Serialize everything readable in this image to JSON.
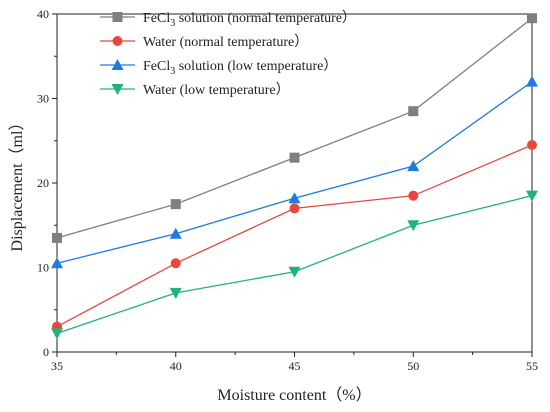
{
  "chart_data": {
    "type": "line",
    "x": [
      35,
      40,
      45,
      50,
      55
    ],
    "xlabel": "Moisture content（%）",
    "ylabel": "Displacement（ml）",
    "xlim": [
      35,
      55
    ],
    "ylim": [
      0,
      40
    ],
    "xticks": [
      35,
      40,
      45,
      50,
      55
    ],
    "yticks": [
      0,
      10,
      20,
      30,
      40
    ],
    "legend_position": "top-left",
    "grid": false,
    "series": [
      {
        "name": "FeCl3 solution (normal temperature）",
        "name_base": "FeCl",
        "name_sub": "3",
        "name_rest": " solution (normal temperature）",
        "marker": "square",
        "color": "#7f7f7f",
        "values": [
          13.5,
          17.5,
          23.0,
          28.5,
          39.5
        ]
      },
      {
        "name": "Water (normal temperature）",
        "marker": "circle",
        "color": "#e8473f",
        "values": [
          3.0,
          10.5,
          17.0,
          18.5,
          24.5
        ]
      },
      {
        "name": "FeCl3 solution (low temperature）",
        "name_base": "FeCl",
        "name_sub": "3",
        "name_rest": " solution (low temperature）",
        "marker": "triangle-up",
        "color": "#1f7be0",
        "values": [
          10.5,
          14.0,
          18.2,
          22.0,
          32.0
        ]
      },
      {
        "name": "Water (low temperature）",
        "marker": "triangle-down",
        "color": "#22b279",
        "values": [
          2.2,
          7.0,
          9.5,
          15.0,
          18.5
        ]
      }
    ]
  }
}
